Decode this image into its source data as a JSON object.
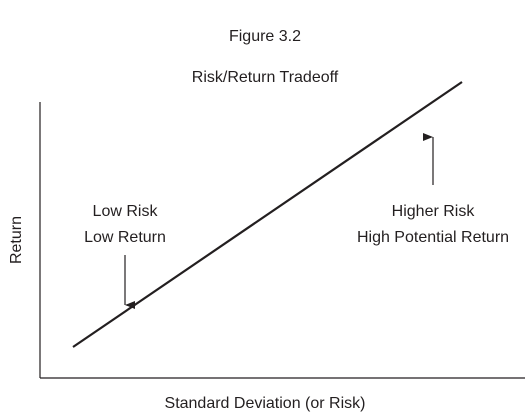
{
  "figure_label": "Figure 3.2",
  "title": "Risk/Return Tradeoff",
  "y_axis_label": "Return",
  "x_axis_label": "Standard Deviation (or Risk)",
  "annotations": [
    {
      "lines": [
        "Low Risk",
        "Low Return"
      ]
    },
    {
      "lines": [
        "Higher Risk",
        "High Potential Return"
      ]
    }
  ]
}
